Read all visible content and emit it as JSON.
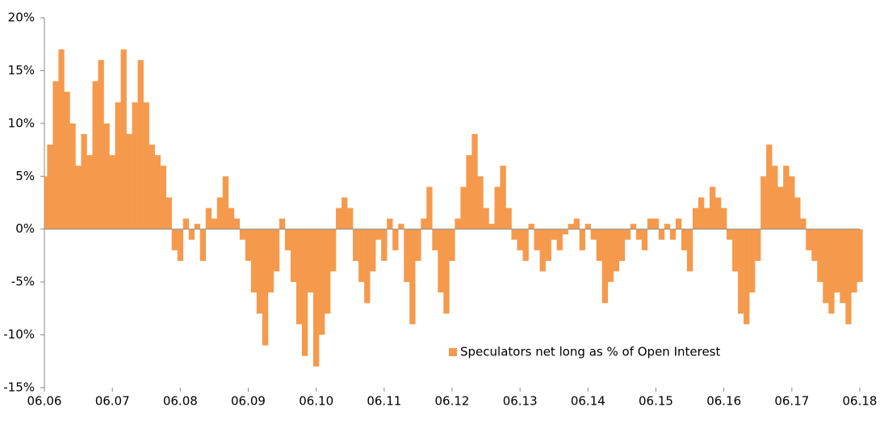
{
  "chart_data": {
    "type": "bar",
    "categories": [
      "06.06",
      null,
      null,
      null,
      null,
      null,
      null,
      null,
      null,
      null,
      null,
      null,
      "06.07",
      null,
      null,
      null,
      null,
      null,
      null,
      null,
      null,
      null,
      null,
      null,
      "06.08",
      null,
      null,
      null,
      null,
      null,
      null,
      null,
      null,
      null,
      null,
      null,
      "06.09",
      null,
      null,
      null,
      null,
      null,
      null,
      null,
      null,
      null,
      null,
      null,
      "06.10",
      null,
      null,
      null,
      null,
      null,
      null,
      null,
      null,
      null,
      null,
      null,
      "06.11",
      null,
      null,
      null,
      null,
      null,
      null,
      null,
      null,
      null,
      null,
      null,
      "06.12",
      null,
      null,
      null,
      null,
      null,
      null,
      null,
      null,
      null,
      null,
      null,
      "06.13",
      null,
      null,
      null,
      null,
      null,
      null,
      null,
      null,
      null,
      null,
      null,
      "06.14",
      null,
      null,
      null,
      null,
      null,
      null,
      null,
      null,
      null,
      null,
      null,
      "06.15",
      null,
      null,
      null,
      null,
      null,
      null,
      null,
      null,
      null,
      null,
      null,
      "06.16",
      null,
      null,
      null,
      null,
      null,
      null,
      null,
      null,
      null,
      null,
      null,
      "06.17",
      null,
      null,
      null,
      null,
      null,
      null,
      null,
      null,
      null,
      null,
      null,
      "06.18"
    ],
    "series": [
      {
        "name": "Speculators net long as % of Open Interest",
        "color": "#f59a4c",
        "values": [
          5,
          8,
          14,
          17,
          13,
          10,
          6,
          9,
          7,
          14,
          16,
          10,
          7,
          12,
          17,
          9,
          12,
          16,
          12,
          8,
          7,
          6,
          3,
          -2,
          -3,
          1,
          -1,
          0.5,
          -3,
          2,
          1,
          3,
          5,
          2,
          1,
          -1,
          -3,
          -6,
          -8,
          -11,
          -6,
          -4,
          1,
          -2,
          -5,
          -9,
          -12,
          -6,
          -13,
          -10,
          -8,
          -4,
          2,
          3,
          2,
          -3,
          -5,
          -7,
          -4,
          -1,
          -3,
          1,
          -2,
          0.5,
          -5,
          -9,
          -3,
          1,
          4,
          -2,
          -6,
          -8,
          -3,
          1,
          4,
          7,
          9,
          5,
          2,
          0.5,
          4,
          6,
          2,
          -1,
          -2,
          -3,
          0.5,
          -2,
          -4,
          -3,
          -1,
          -2,
          -0.5,
          0.5,
          1,
          -2,
          0.5,
          -1,
          -3,
          -7,
          -5,
          -4,
          -3,
          -1,
          0.5,
          -1,
          -2,
          1,
          1,
          -1,
          0.5,
          -1,
          1,
          -2,
          -4,
          2,
          3,
          2,
          4,
          3,
          2,
          -1,
          -4,
          -8,
          -9,
          -6,
          -3,
          5,
          8,
          6,
          4,
          6,
          5,
          3,
          1,
          -2,
          -3,
          -5,
          -7,
          -8,
          -6,
          -7,
          -9,
          -6,
          -5
        ]
      }
    ],
    "ylim": [
      -15,
      20
    ],
    "yticks": [
      {
        "value": -15,
        "label": "-15%"
      },
      {
        "value": -10,
        "label": "-10%"
      },
      {
        "value": -5,
        "label": "-5%"
      },
      {
        "value": 0,
        "label": "0%"
      },
      {
        "value": 5,
        "label": "5%"
      },
      {
        "value": 10,
        "label": "10%"
      },
      {
        "value": 15,
        "label": "15%"
      },
      {
        "value": 20,
        "label": "20%"
      }
    ],
    "grid": false
  }
}
